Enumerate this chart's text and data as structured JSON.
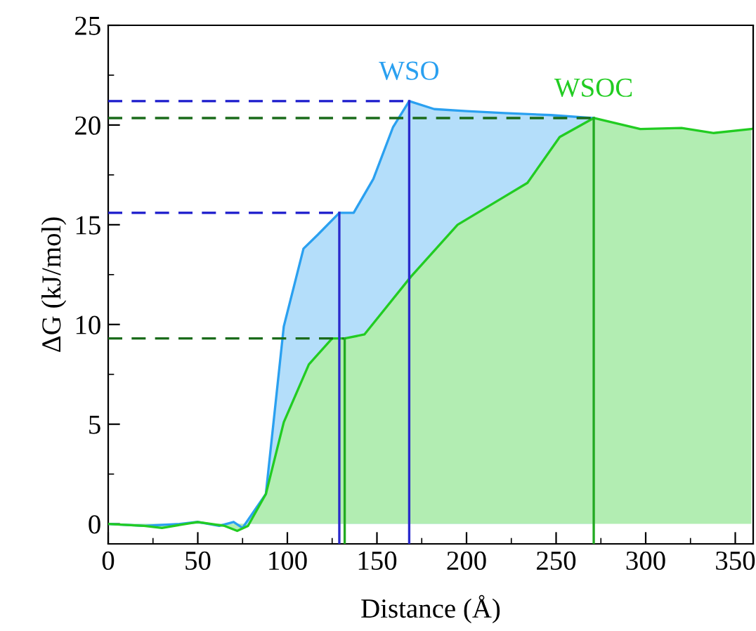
{
  "chart_data": {
    "type": "area",
    "xlabel": "Distance (Å)",
    "ylabel": "ΔG (kJ/mol)",
    "xlim": [
      0,
      360
    ],
    "ylim": [
      -1,
      25
    ],
    "xticks": [
      0,
      50,
      100,
      150,
      200,
      250,
      300,
      350
    ],
    "yticks": [
      0,
      5,
      10,
      15,
      20,
      25
    ],
    "series": [
      {
        "name": "WSO",
        "color": "#2aa0f0",
        "x": [
          0,
          20,
          40,
          50,
          62,
          70,
          75,
          88,
          98,
          109,
          117,
          129,
          137,
          148,
          159,
          168,
          182,
          200,
          221,
          247,
          271
        ],
        "values": [
          0,
          -0.1,
          0,
          0.1,
          -0.1,
          0.1,
          -0.2,
          1.5,
          9.9,
          13.8,
          14.5,
          15.6,
          15.6,
          17.3,
          19.9,
          21.2,
          20.8,
          20.7,
          20.6,
          20.5,
          20.35
        ]
      },
      {
        "name": "WSOC",
        "color": "#22cc22",
        "x": [
          0,
          20,
          30,
          50,
          65,
          72,
          78,
          88,
          98,
          112,
          125,
          132,
          143,
          169,
          195,
          221,
          234,
          252,
          271,
          297,
          320,
          338,
          359
        ],
        "values": [
          0,
          -0.1,
          -0.2,
          0.1,
          -0.1,
          -0.35,
          -0.1,
          1.5,
          5.1,
          8.0,
          9.3,
          9.3,
          9.5,
          12.4,
          15.0,
          16.4,
          17.1,
          19.4,
          20.35,
          19.8,
          19.85,
          19.6,
          19.8
        ]
      },
      {
        "type": "line",
        "color": "#1a1acc",
        "line_style": "dashed",
        "x": [
          0,
          168
        ],
        "values": [
          21.2,
          21.2
        ]
      },
      {
        "type": "line",
        "color": "#1a1acc",
        "line_style": "dashed",
        "x": [
          0,
          129
        ],
        "values": [
          15.6,
          15.6
        ]
      },
      {
        "type": "line",
        "color": "#1a6b1a",
        "line_style": "dashed",
        "x": [
          0,
          271
        ],
        "values": [
          20.35,
          20.35
        ]
      },
      {
        "type": "line",
        "color": "#1a6b1a",
        "line_style": "dashed",
        "x": [
          0,
          132
        ],
        "values": [
          9.3,
          9.3
        ]
      },
      {
        "type": "line",
        "color": "#2a2acc",
        "line_style": "solid",
        "x": [
          168,
          168
        ],
        "values": [
          -1,
          21.2
        ]
      },
      {
        "type": "line",
        "color": "#2a2acc",
        "line_style": "solid",
        "x": [
          129,
          129
        ],
        "values": [
          -1,
          15.6
        ]
      },
      {
        "type": "line",
        "color": "#22aa22",
        "line_style": "solid",
        "x": [
          271,
          271
        ],
        "values": [
          -1,
          20.35
        ]
      },
      {
        "type": "line",
        "color": "#22aa22",
        "line_style": "solid",
        "x": [
          132,
          132
        ],
        "values": [
          -1,
          9.3
        ]
      }
    ]
  }
}
